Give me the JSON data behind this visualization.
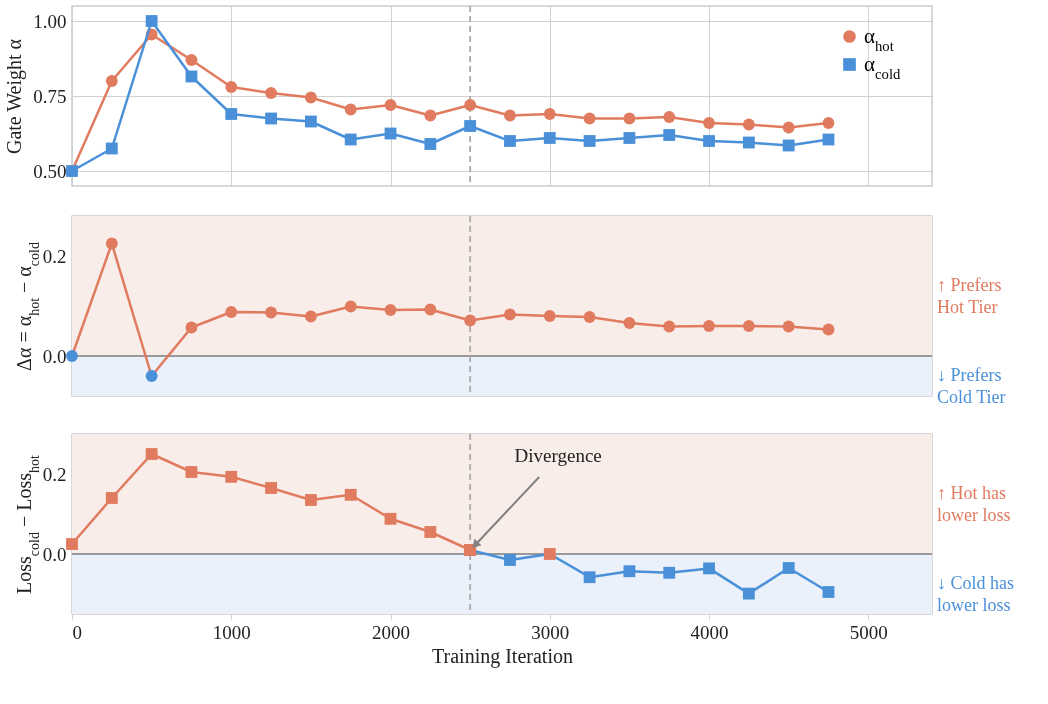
{
  "chart_data": [
    {
      "type": "line",
      "ylabel": "Gate Weight α",
      "x": [
        0,
        250,
        500,
        750,
        1000,
        1250,
        1500,
        1750,
        2000,
        2250,
        2500,
        2750,
        3000,
        3250,
        3500,
        3750,
        4000,
        4250,
        4500,
        4750
      ],
      "series": [
        {
          "name": "α$_{hot}$",
          "color": "#e07b5f",
          "marker": "circle",
          "values": [
            0.5,
            0.8,
            0.955,
            0.87,
            0.78,
            0.76,
            0.745,
            0.705,
            0.72,
            0.685,
            0.72,
            0.685,
            0.69,
            0.675,
            0.675,
            0.68,
            0.66,
            0.655,
            0.645,
            0.66
          ]
        },
        {
          "name": "α$_{cold}$",
          "color": "#4a90d9",
          "marker": "square",
          "values": [
            0.5,
            0.575,
            1.0,
            0.815,
            0.69,
            0.675,
            0.665,
            0.605,
            0.625,
            0.59,
            0.65,
            0.6,
            0.61,
            0.6,
            0.61,
            0.62,
            0.6,
            0.595,
            0.585,
            0.605
          ]
        }
      ],
      "xlim": [
        0,
        5400
      ],
      "xticks": [
        0,
        1000,
        2000,
        3000,
        4000,
        5000
      ],
      "ylim": [
        0.45,
        1.05
      ],
      "yticks": [
        {
          "value": 0.5,
          "label": "0.50"
        },
        {
          "value": 0.75,
          "label": "0.75"
        },
        {
          "value": 1,
          "label": "1.00"
        }
      ],
      "grid": true,
      "legend": "top right",
      "tick_labels": "y",
      "ref_lines": [
        {
          "axis": "x",
          "value": 2500,
          "color": "#aaaaaa",
          "line_style": "dashed"
        }
      ]
    },
    {
      "type": "line",
      "ylabel": "Δα = α$_{hot}$ − α$_{cold}$",
      "x": [
        0,
        250,
        500,
        750,
        1000,
        1250,
        1500,
        1750,
        2000,
        2250,
        2500,
        2750,
        3000,
        3250,
        3500,
        3750,
        4000,
        4250,
        4500,
        4750
      ],
      "series": [
        {
          "color": "#e07b5f",
          "marker": "circle",
          "values": [
            0,
            0.225,
            -0.04,
            0.057,
            0.088,
            0.087,
            0.079,
            0.099,
            0.092,
            0.093,
            0.071,
            0.083,
            0.08,
            0.078,
            0.066,
            0.059,
            0.06,
            0.06,
            0.059,
            0.053
          ],
          "colors": [
            "#4a90d9",
            "#e07b5f",
            "#4a90d9",
            "#e07b5f",
            "#e07b5f",
            "#e07b5f",
            "#e07b5f",
            "#e07b5f",
            "#e07b5f",
            "#e07b5f",
            "#e07b5f",
            "#e07b5f",
            "#e07b5f",
            "#e07b5f",
            "#e07b5f",
            "#e07b5f",
            "#e07b5f",
            "#e07b5f",
            "#e07b5f",
            "#e07b5f"
          ]
        }
      ],
      "xlim": [
        0,
        5400
      ],
      "xticks": [
        0,
        1000,
        2000,
        3000,
        4000,
        5000
      ],
      "ylim": [
        -0.08,
        0.28
      ],
      "yticks": [
        {
          "value": 0,
          "label": "0.0"
        },
        {
          "value": 0.2,
          "label": "0.2"
        }
      ],
      "grid": true,
      "tick_labels": "y",
      "bands": [
        {
          "axis": "y",
          "from": 0,
          "to": 0.28,
          "label": "↑ Prefers\nHot Tier",
          "color": "#f9ede9"
        },
        {
          "axis": "y",
          "from": -0.08,
          "to": 0,
          "label": "↓ Prefers\nCold Tier",
          "color": "#eaf1fa"
        }
      ],
      "ref_lines": [
        {
          "axis": "y",
          "value": 0,
          "color": "#999999",
          "line_style": "solid"
        },
        {
          "axis": "x",
          "value": 2500,
          "color": "#aaaaaa",
          "line_style": "dashed"
        }
      ]
    },
    {
      "type": "line",
      "ylabel": "Loss$_{cold}$ − Loss$_{hot}$",
      "xlabel": "Training Iteration",
      "series": [
        {
          "color": "#e07b5f",
          "marker": "square",
          "x": [
            0,
            250,
            500,
            750,
            1000,
            1250,
            1500,
            1750,
            2000,
            2250,
            2500
          ],
          "values": [
            0.025,
            0.14,
            0.25,
            0.205,
            0.193,
            0.165,
            0.135,
            0.148,
            0.088,
            0.055,
            0.01
          ]
        },
        {
          "color": "#4a90d9",
          "marker": "square",
          "x": [
            2500,
            2750,
            3000,
            3250,
            3500,
            3750,
            4000,
            4250,
            4500,
            4750
          ],
          "values": [
            0.01,
            -0.015,
            0.0,
            -0.058,
            -0.043,
            -0.047,
            -0.036,
            -0.099,
            -0.035,
            -0.095
          ],
          "colors": [
            "#e07b5f",
            "#4a90d9",
            "#e07b5f",
            "#4a90d9",
            "#4a90d9",
            "#4a90d9",
            "#4a90d9",
            "#4a90d9",
            "#4a90d9",
            "#4a90d9"
          ]
        }
      ],
      "xlim": [
        0,
        5400
      ],
      "xticks": [
        0,
        1000,
        2000,
        3000,
        4000,
        5000
      ],
      "ylim": [
        -0.15,
        0.3
      ],
      "yticks": [
        {
          "value": 0,
          "label": "0.0"
        },
        {
          "value": 0.2,
          "label": "0.2"
        }
      ],
      "grid": true,
      "bands": [
        {
          "axis": "y",
          "from": 0,
          "to": 0.3,
          "label": "↑ Hot has\nlower loss",
          "color": "#f9ede9"
        },
        {
          "axis": "y",
          "from": -0.15,
          "to": 0,
          "label": "↓ Cold has\nlower loss",
          "color": "#eaf1fa"
        }
      ],
      "ref_lines": [
        {
          "axis": "y",
          "value": 0,
          "color": "#999999",
          "line_style": "solid"
        },
        {
          "axis": "x",
          "value": 2500,
          "color": "#aaaaaa",
          "line_style": "dashed"
        }
      ],
      "annotations": [
        {
          "text": "Divergence",
          "x": 2500,
          "y": 0.01
        }
      ]
    }
  ]
}
